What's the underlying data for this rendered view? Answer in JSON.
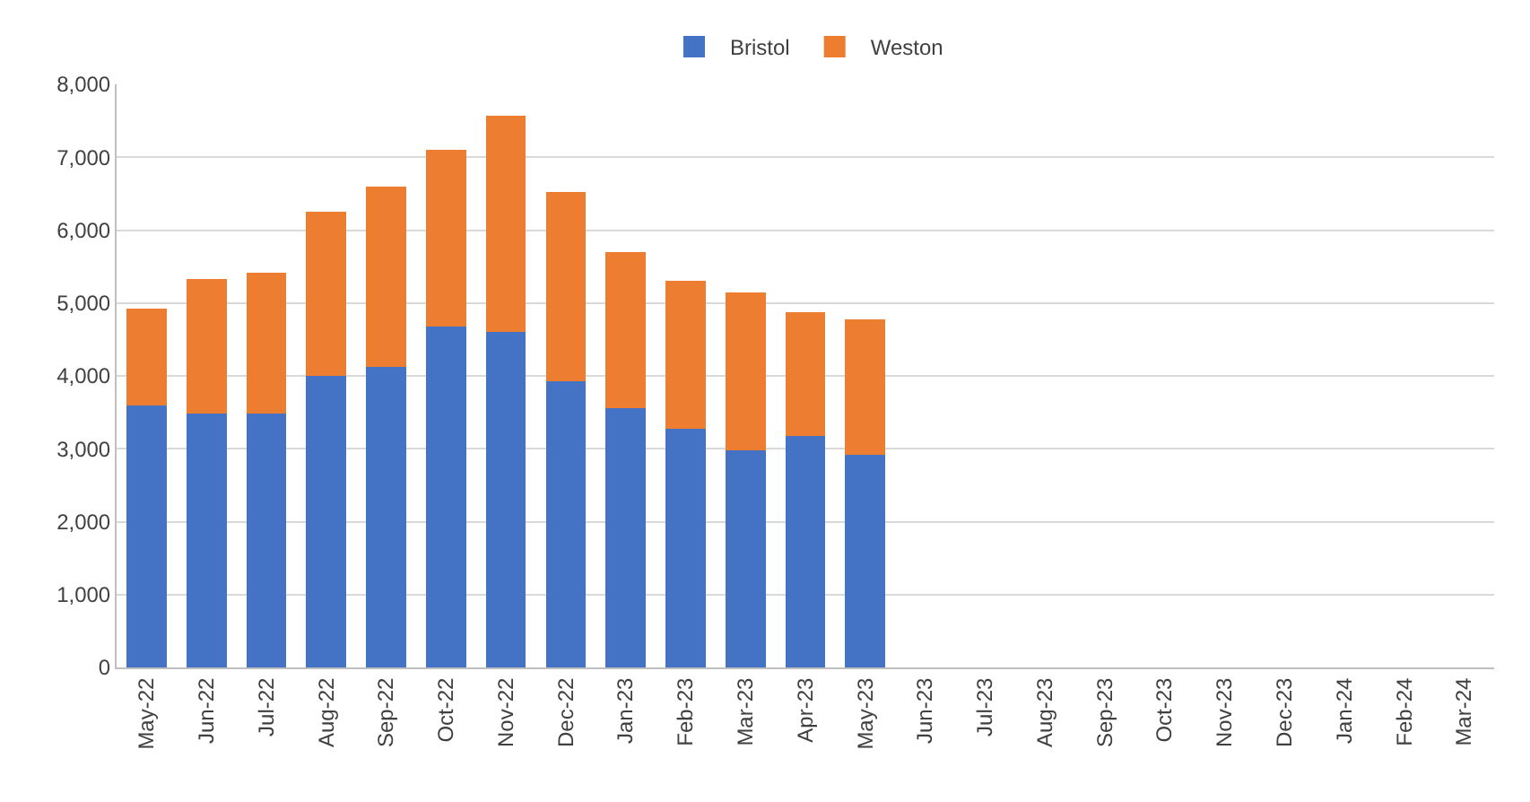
{
  "chart_data": {
    "type": "bar",
    "stacked": true,
    "legend": "top",
    "grid": "y",
    "categories": [
      "May-22",
      "Jun-22",
      "Jul-22",
      "Aug-22",
      "Sep-22",
      "Oct-22",
      "Nov-22",
      "Dec-22",
      "Jan-23",
      "Feb-23",
      "Mar-23",
      "Apr-23",
      "May-23",
      "Jun-23",
      "Jul-23",
      "Aug-23",
      "Sep-23",
      "Oct-23",
      "Nov-23",
      "Dec-23",
      "Jan-24",
      "Feb-24",
      "Mar-24"
    ],
    "series": [
      {
        "name": "Bristol",
        "color": "#4472c4",
        "values": [
          3600,
          3480,
          3480,
          4000,
          4120,
          4680,
          4600,
          3930,
          3560,
          3270,
          2980,
          3170,
          2920,
          null,
          null,
          null,
          null,
          null,
          null,
          null,
          null,
          null,
          null
        ]
      },
      {
        "name": "Weston",
        "color": "#ed7d31",
        "values": [
          1320,
          1850,
          1940,
          2250,
          2480,
          2420,
          2970,
          2590,
          2140,
          2030,
          2160,
          1700,
          1860,
          null,
          null,
          null,
          null,
          null,
          null,
          null,
          null,
          null,
          null
        ]
      }
    ],
    "ylim": [
      0,
      8000
    ],
    "yticks": [
      {
        "value": 0,
        "label": "0"
      },
      {
        "value": 1000,
        "label": "1,000"
      },
      {
        "value": 2000,
        "label": "2,000"
      },
      {
        "value": 3000,
        "label": "3,000"
      },
      {
        "value": 4000,
        "label": "4,000"
      },
      {
        "value": 5000,
        "label": "5,000"
      },
      {
        "value": 6000,
        "label": "6,000"
      },
      {
        "value": 7000,
        "label": "7,000"
      },
      {
        "value": 8000,
        "label": "8,000"
      }
    ]
  }
}
